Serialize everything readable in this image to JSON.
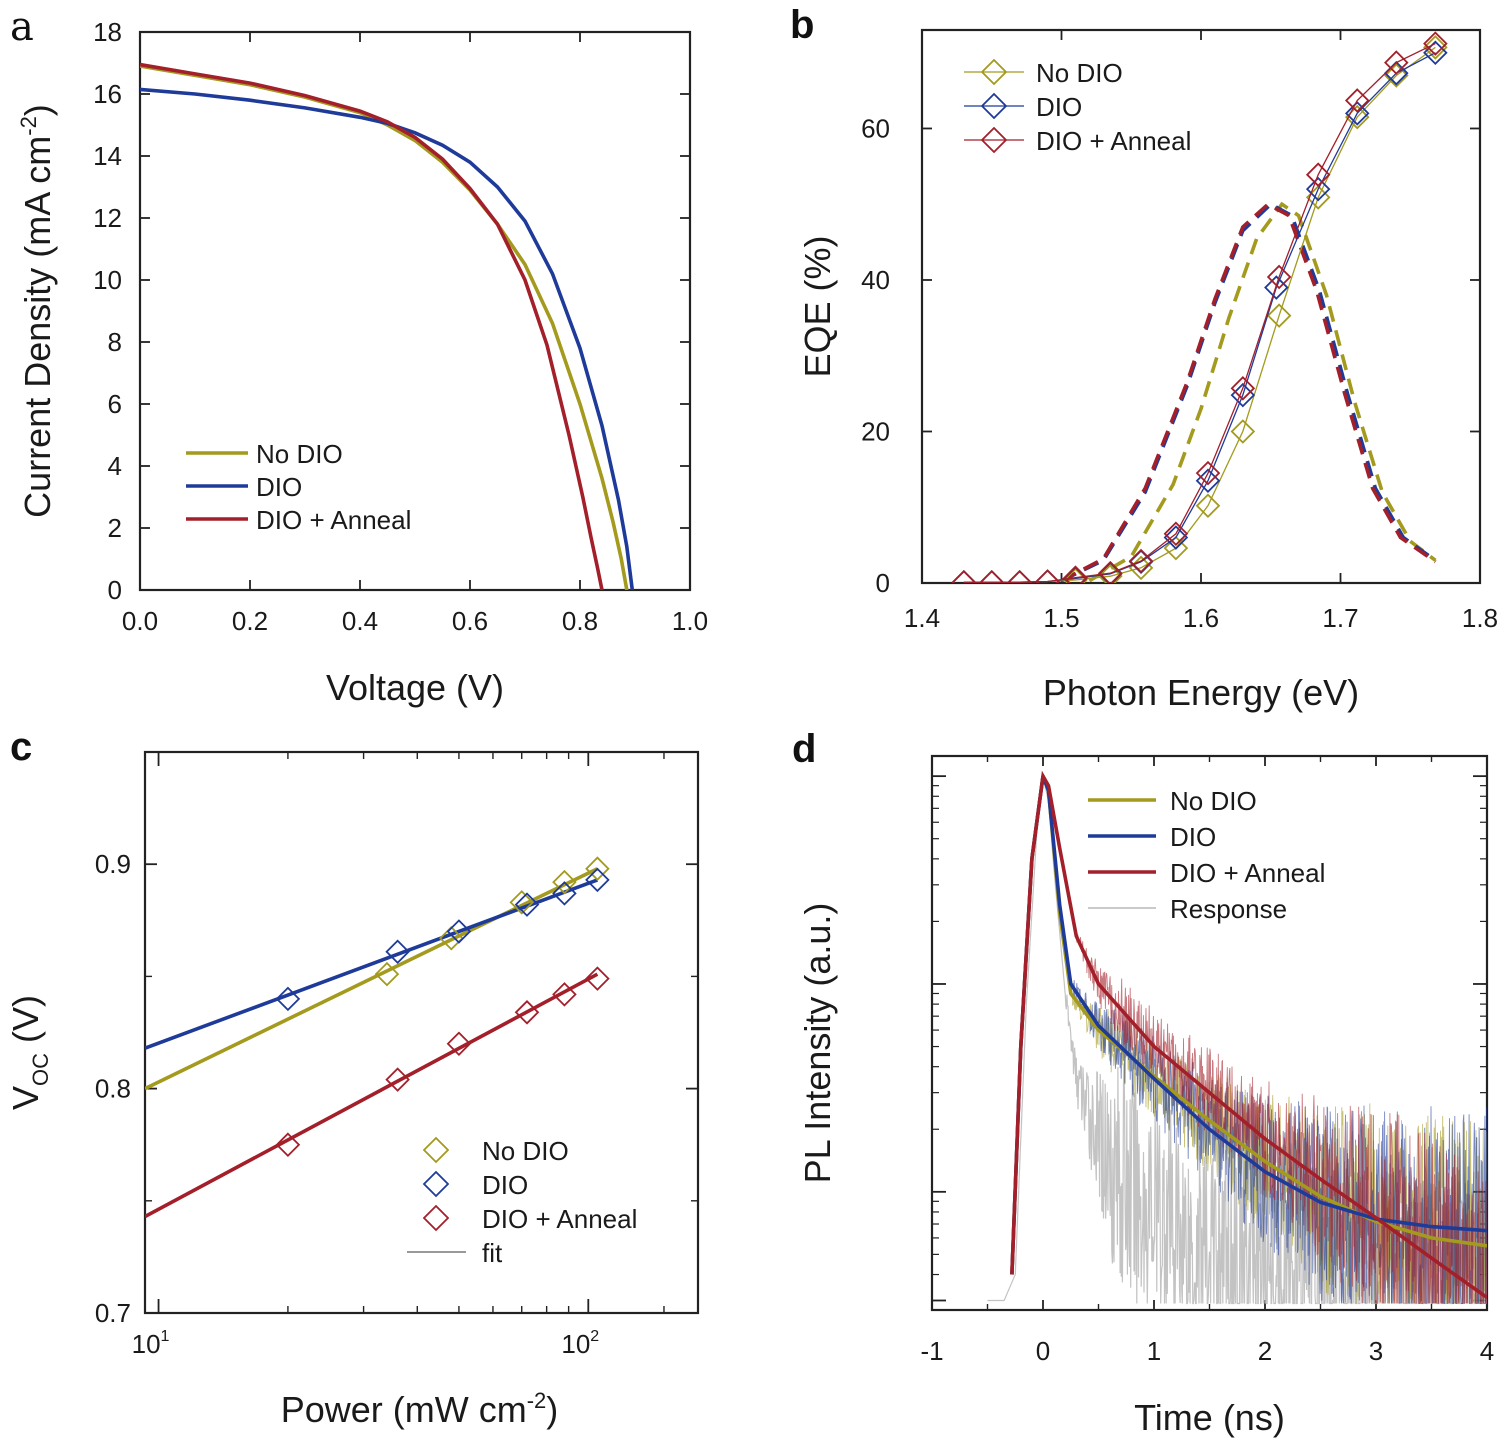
{
  "colors": {
    "no_dio": "#a39a1e",
    "dio": "#1f3b9a",
    "dio_anneal": "#a31f2a",
    "response": "#b8b8b8",
    "fit": "#999999"
  },
  "chart_data": [
    {
      "id": "a",
      "panel_label": "a",
      "type": "line",
      "xlabel": "Voltage (V)",
      "ylabel": "Current Density (mA cm",
      "ylabel_sup": "-2",
      "ylabel_end": ")",
      "xlim": [
        0.0,
        1.0
      ],
      "ylim": [
        0,
        18
      ],
      "xticks": [
        "0.0",
        "0.2",
        "0.4",
        "0.6",
        "0.8",
        "1.0"
      ],
      "yticks": [
        "0",
        "2",
        "4",
        "6",
        "8",
        "10",
        "12",
        "14",
        "16",
        "18"
      ],
      "legend_position": "lower-left",
      "series": [
        {
          "name": "No DIO",
          "color_key": "no_dio",
          "x": [
            0,
            0.1,
            0.2,
            0.3,
            0.4,
            0.45,
            0.5,
            0.55,
            0.6,
            0.65,
            0.7,
            0.75,
            0.8,
            0.84,
            0.86,
            0.875,
            0.885
          ],
          "y": [
            16.9,
            16.6,
            16.3,
            15.9,
            15.4,
            15.0,
            14.5,
            13.8,
            12.9,
            11.8,
            10.5,
            8.6,
            6.0,
            3.6,
            2.2,
            1.0,
            0
          ]
        },
        {
          "name": "DIO",
          "color_key": "dio",
          "x": [
            0,
            0.1,
            0.2,
            0.3,
            0.4,
            0.45,
            0.5,
            0.55,
            0.6,
            0.65,
            0.7,
            0.75,
            0.8,
            0.84,
            0.87,
            0.885,
            0.895
          ],
          "y": [
            16.15,
            16.0,
            15.8,
            15.55,
            15.25,
            15.05,
            14.75,
            14.35,
            13.8,
            13.0,
            11.9,
            10.2,
            7.8,
            5.3,
            2.9,
            1.4,
            0
          ]
        },
        {
          "name": "DIO + Anneal",
          "color_key": "dio_anneal",
          "x": [
            0,
            0.1,
            0.2,
            0.3,
            0.4,
            0.45,
            0.5,
            0.55,
            0.6,
            0.65,
            0.7,
            0.74,
            0.78,
            0.805,
            0.82,
            0.832,
            0.84
          ],
          "y": [
            16.95,
            16.65,
            16.35,
            15.95,
            15.45,
            15.1,
            14.6,
            13.9,
            12.95,
            11.8,
            10.0,
            7.9,
            5.0,
            3.0,
            1.7,
            0.7,
            0
          ]
        }
      ]
    },
    {
      "id": "b",
      "panel_label": "b",
      "type": "scatter",
      "xlabel": "Photon Energy (eV)",
      "ylabel": "EQE (%)",
      "xlim": [
        1.4,
        1.8
      ],
      "ylim": [
        0,
        73
      ],
      "xticks": [
        "1.4",
        "1.5",
        "1.6",
        "1.7",
        "1.8"
      ],
      "yticks": [
        "0",
        "20",
        "40",
        "60"
      ],
      "legend_position": "top-left",
      "series": [
        {
          "name": "No DIO",
          "color_key": "no_dio",
          "x": [
            1.43,
            1.45,
            1.47,
            1.49,
            1.51,
            1.535,
            1.557,
            1.582,
            1.605,
            1.63,
            1.656,
            1.684,
            1.712,
            1.74,
            1.768
          ],
          "y": [
            0.1,
            0.1,
            0.1,
            0.2,
            0.4,
            0.9,
            2.0,
            4.6,
            10.2,
            20.0,
            35.3,
            50.9,
            61.5,
            67.0,
            70.7
          ]
        },
        {
          "name": "DIO",
          "color_key": "dio",
          "x": [
            1.43,
            1.45,
            1.47,
            1.49,
            1.51,
            1.535,
            1.557,
            1.582,
            1.605,
            1.63,
            1.654,
            1.684,
            1.712,
            1.74,
            1.768
          ],
          "y": [
            0.1,
            0.1,
            0.1,
            0.2,
            0.6,
            1.2,
            2.8,
            6.0,
            13.5,
            24.8,
            39.0,
            52.0,
            62.0,
            67.3,
            70.0
          ]
        },
        {
          "name": "DIO + Anneal",
          "color_key": "dio_anneal",
          "x": [
            1.43,
            1.45,
            1.47,
            1.49,
            1.51,
            1.535,
            1.557,
            1.582,
            1.605,
            1.63,
            1.656,
            1.684,
            1.712,
            1.74,
            1.768
          ],
          "y": [
            0.1,
            0.1,
            0.1,
            0.2,
            0.7,
            1.3,
            2.9,
            6.5,
            14.5,
            25.7,
            40.4,
            53.9,
            63.7,
            68.7,
            71.2
          ]
        }
      ],
      "dashed_series": [
        {
          "color_key": "no_dio",
          "x": [
            1.52,
            1.55,
            1.58,
            1.6,
            1.62,
            1.64,
            1.658,
            1.67,
            1.69,
            1.71,
            1.73,
            1.75,
            1.768
          ],
          "y": [
            0.3,
            3.5,
            13.0,
            23.0,
            35.0,
            45.5,
            50.0,
            48.5,
            38.0,
            24.0,
            12.0,
            5.5,
            3.0
          ]
        },
        {
          "color_key": "dio",
          "x": [
            1.5,
            1.53,
            1.56,
            1.59,
            1.61,
            1.63,
            1.65,
            1.665,
            1.685,
            1.705,
            1.725,
            1.745,
            1.768
          ],
          "y": [
            0.3,
            3.0,
            12.0,
            26.0,
            37.0,
            46.5,
            50.0,
            48.5,
            38.5,
            25.0,
            12.5,
            6.0,
            3.0
          ]
        },
        {
          "color_key": "dio_anneal",
          "x": [
            1.5,
            1.53,
            1.56,
            1.59,
            1.61,
            1.63,
            1.648,
            1.663,
            1.683,
            1.703,
            1.723,
            1.743,
            1.768
          ],
          "y": [
            0.3,
            3.2,
            12.5,
            26.5,
            37.5,
            47.0,
            50.0,
            48.5,
            38.5,
            25.0,
            12.5,
            6.0,
            2.8
          ]
        }
      ]
    },
    {
      "id": "c",
      "panel_label": "c",
      "type": "scatter",
      "xlabel": "Power (mW cm",
      "xlabel_sup": "-2",
      "xlabel_end": ")",
      "ylabel": "V",
      "ylabel_sub": "OC",
      "ylabel_end": " (V)",
      "xscale": "log",
      "xlim": [
        9.3,
        180
      ],
      "ylim": [
        0.7,
        0.95
      ],
      "xticks": [
        {
          "value": 10,
          "base": "10",
          "exp": "1"
        },
        {
          "value": 100,
          "base": "10",
          "exp": "2"
        }
      ],
      "yticks": [
        "0.7",
        "0.8",
        "0.9"
      ],
      "legend_position": "lower-right",
      "series": [
        {
          "name": "No DIO",
          "color_key": "no_dio",
          "x": [
            34,
            48,
            70,
            88,
            105
          ],
          "y": [
            0.851,
            0.867,
            0.883,
            0.892,
            0.898
          ]
        },
        {
          "name": "DIO",
          "color_key": "dio",
          "x": [
            20,
            36,
            50,
            72,
            88,
            105
          ],
          "y": [
            0.84,
            0.861,
            0.87,
            0.882,
            0.887,
            0.893
          ]
        },
        {
          "name": "DIO + Anneal",
          "color_key": "dio_anneal",
          "x": [
            20,
            36,
            50,
            72,
            88,
            105
          ],
          "y": [
            0.775,
            0.804,
            0.82,
            0.834,
            0.842,
            0.849
          ]
        }
      ],
      "fit_series": [
        {
          "color_key": "no_dio",
          "x": [
            9.3,
            105
          ],
          "y": [
            0.8,
            0.898
          ]
        },
        {
          "color_key": "dio",
          "x": [
            9.3,
            105
          ],
          "y": [
            0.818,
            0.893
          ]
        },
        {
          "color_key": "dio_anneal",
          "x": [
            9.3,
            105
          ],
          "y": [
            0.743,
            0.851
          ]
        }
      ],
      "fit_label": "fit"
    },
    {
      "id": "d",
      "panel_label": "d",
      "type": "line",
      "xlabel": "Time (ns)",
      "ylabel": "PL Intensity (a.u.)",
      "yscale": "log",
      "xlim": [
        -1,
        4
      ],
      "xticks": [
        "-1",
        "0",
        "1",
        "2",
        "3",
        "4"
      ],
      "legend_position": "top-right",
      "series": [
        {
          "name": "No DIO",
          "color_key": "no_dio",
          "x": [
            -0.28,
            -0.2,
            -0.1,
            0,
            0.05,
            0.15,
            0.25,
            0.5,
            1.0,
            1.5,
            2.0,
            2.5,
            3.0,
            3.5,
            4.0
          ],
          "y": [
            0.004,
            0.05,
            0.4,
            1.0,
            0.85,
            0.22,
            0.09,
            0.06,
            0.036,
            0.022,
            0.014,
            0.0095,
            0.0072,
            0.006,
            0.0055
          ]
        },
        {
          "name": "DIO",
          "color_key": "dio",
          "x": [
            -0.28,
            -0.2,
            -0.1,
            0,
            0.05,
            0.15,
            0.25,
            0.5,
            1.0,
            1.5,
            2.0,
            2.5,
            3.0,
            3.5,
            4.0
          ],
          "y": [
            0.004,
            0.05,
            0.4,
            1.0,
            0.85,
            0.24,
            0.1,
            0.063,
            0.035,
            0.02,
            0.0125,
            0.0089,
            0.0074,
            0.0068,
            0.0065
          ]
        },
        {
          "name": "DIO + Anneal",
          "color_key": "dio_anneal",
          "x": [
            -0.28,
            -0.2,
            -0.1,
            0,
            0.05,
            0.15,
            0.3,
            0.5,
            1.0,
            1.5,
            2.0,
            2.5,
            3.0,
            3.5,
            4.0
          ],
          "y": [
            0.004,
            0.05,
            0.4,
            1.0,
            0.9,
            0.45,
            0.17,
            0.1,
            0.05,
            0.03,
            0.018,
            0.0115,
            0.0075,
            0.0048,
            0.0031
          ]
        },
        {
          "name": "Response",
          "color_key": "response",
          "x": [
            -0.45,
            -0.35,
            -0.25,
            -0.15,
            -0.05,
            0,
            0.05,
            0.1,
            0.2,
            0.3,
            0.5,
            0.8,
            1.2,
            1.6,
            2.0,
            2.5,
            3.0,
            3.5,
            4.0
          ],
          "y": [
            0.003,
            0.003,
            0.004,
            0.08,
            0.6,
            1.0,
            0.75,
            0.35,
            0.09,
            0.035,
            0.018,
            0.01,
            0.0065,
            0.0048,
            0.004,
            0.0035,
            0.0032,
            0.003,
            0.003
          ]
        }
      ]
    }
  ]
}
